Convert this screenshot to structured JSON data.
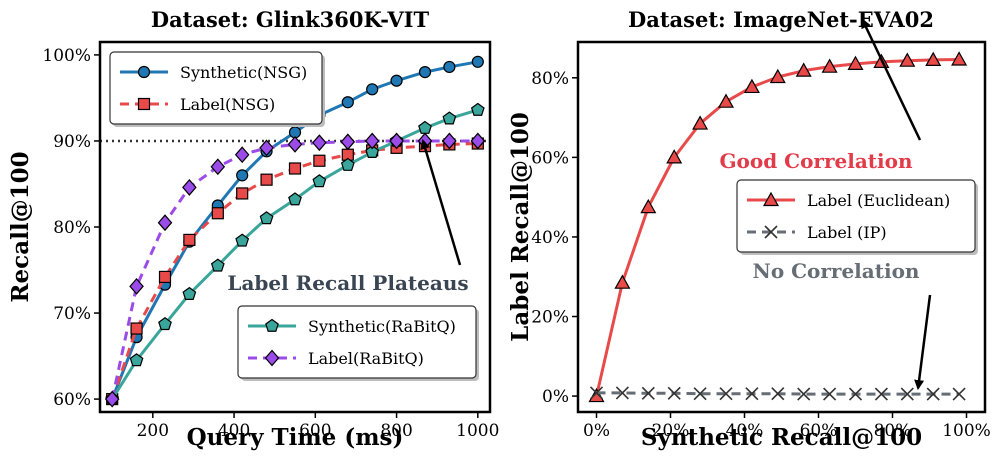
{
  "chart_data": [
    {
      "type": "line",
      "title": "Dataset: Glink360K-VIT",
      "xlabel": "Query Time (ms)",
      "ylabel": "Recall@100",
      "xlim": [
        70,
        1030
      ],
      "ylim": [
        58.5,
        101.5
      ],
      "xticks": [
        200,
        400,
        600,
        800,
        1000
      ],
      "xtick_labels": [
        "200",
        "400",
        "600",
        "800",
        "1000"
      ],
      "yticks": [
        60,
        70,
        80,
        90,
        100
      ],
      "ytick_labels": [
        "60%",
        "70%",
        "80%",
        "90%",
        "100%"
      ],
      "reference_line": {
        "y": 90,
        "style": "dotted"
      },
      "series": [
        {
          "name": "Synthetic(NSG)",
          "color": "#1f77b4",
          "linestyle": "solid",
          "marker": "circle",
          "x": [
            100,
            160,
            230,
            290,
            360,
            420,
            480,
            550,
            610,
            680,
            740,
            800,
            870,
            930,
            1000
          ],
          "y": [
            60,
            67.2,
            73.3,
            78.3,
            82.5,
            86,
            88.8,
            91,
            93,
            94.5,
            96,
            97,
            98,
            98.6,
            99.2
          ]
        },
        {
          "name": "Label(NSG)",
          "color": "#e84a4a",
          "linestyle": "dashed",
          "marker": "square",
          "x": [
            100,
            160,
            230,
            290,
            360,
            420,
            480,
            550,
            610,
            680,
            740,
            800,
            870,
            930,
            1000
          ],
          "y": [
            60,
            68.2,
            74.2,
            78.5,
            81.6,
            83.9,
            85.5,
            86.8,
            87.7,
            88.4,
            88.9,
            89.2,
            89.4,
            89.6,
            89.7
          ]
        },
        {
          "name": "Synthetic(RaBitQ)",
          "color": "#3aa59a",
          "linestyle": "solid",
          "marker": "pentagon",
          "x": [
            100,
            160,
            230,
            290,
            360,
            420,
            480,
            550,
            610,
            680,
            740,
            800,
            870,
            930,
            1000
          ],
          "y": [
            60,
            64.5,
            68.7,
            72.2,
            75.5,
            78.4,
            81,
            83.2,
            85.3,
            87.2,
            88.7,
            90,
            91.5,
            92.6,
            93.6
          ]
        },
        {
          "name": "Label(RaBitQ)",
          "color": "#9b4be8",
          "linestyle": "dashed",
          "marker": "diamond",
          "x": [
            100,
            160,
            230,
            290,
            360,
            420,
            480,
            550,
            610,
            680,
            740,
            800,
            870,
            930,
            1000
          ],
          "y": [
            60,
            73.1,
            80.5,
            84.6,
            87,
            88.4,
            89.2,
            89.6,
            89.8,
            89.9,
            90,
            90,
            90,
            90,
            90
          ]
        }
      ],
      "legends": [
        {
          "position": "top-left",
          "entries": [
            "Synthetic(NSG)",
            "Label(NSG)"
          ]
        },
        {
          "position": "bottom-right",
          "entries": [
            "Synthetic(RaBitQ)",
            "Label(RaBitQ)"
          ]
        }
      ],
      "annotations": [
        {
          "text": "Label Recall Plateaus",
          "color": "#3a4553",
          "arrow_to": {
            "x": 865,
            "y": 90
          }
        }
      ]
    },
    {
      "type": "line",
      "title": "Dataset: ImageNet-EVA02",
      "xlabel": "Synthetic Recall@100",
      "ylabel": "Label Recall@100",
      "xlim": [
        -5,
        105
      ],
      "ylim": [
        -4,
        89
      ],
      "xticks": [
        0,
        20,
        40,
        60,
        80,
        100
      ],
      "xtick_labels": [
        "0%",
        "20%",
        "40%",
        "60%",
        "80%",
        "100%"
      ],
      "yticks": [
        0,
        20,
        40,
        60,
        80
      ],
      "ytick_labels": [
        "0%",
        "20%",
        "40%",
        "60%",
        "80%"
      ],
      "series": [
        {
          "name": "Label (Euclidean)",
          "color": "#e84a4a",
          "linestyle": "solid",
          "marker": "triangle",
          "x": [
            0,
            7,
            14,
            21,
            28,
            35,
            42,
            49,
            56,
            63,
            70,
            77,
            84,
            91,
            98
          ],
          "y": [
            0,
            28.5,
            47.5,
            60,
            68.5,
            74,
            77.7,
            80.2,
            81.8,
            82.8,
            83.5,
            84,
            84.3,
            84.5,
            84.6
          ]
        },
        {
          "name": "Label (IP)",
          "color": "#666d74",
          "linestyle": "dashed",
          "marker": "x",
          "x": [
            0,
            7,
            14,
            21,
            28,
            35,
            42,
            49,
            56,
            63,
            70,
            77,
            84,
            91,
            98
          ],
          "y": [
            0.8,
            0.8,
            0.7,
            0.7,
            0.6,
            0.6,
            0.6,
            0.6,
            0.5,
            0.5,
            0.5,
            0.5,
            0.5,
            0.5,
            0.5
          ]
        }
      ],
      "legends": [
        {
          "position": "center-right",
          "entries": [
            "Label (Euclidean)",
            "Label (IP)"
          ]
        }
      ],
      "annotations": [
        {
          "text": "Good Correlation",
          "color": "#e23b4a",
          "arrow_to": {
            "x": 80,
            "y": 84
          }
        },
        {
          "text": "No Correlation",
          "color": "#666d74",
          "arrow_to": {
            "x": 88,
            "y": 0
          }
        }
      ]
    }
  ]
}
